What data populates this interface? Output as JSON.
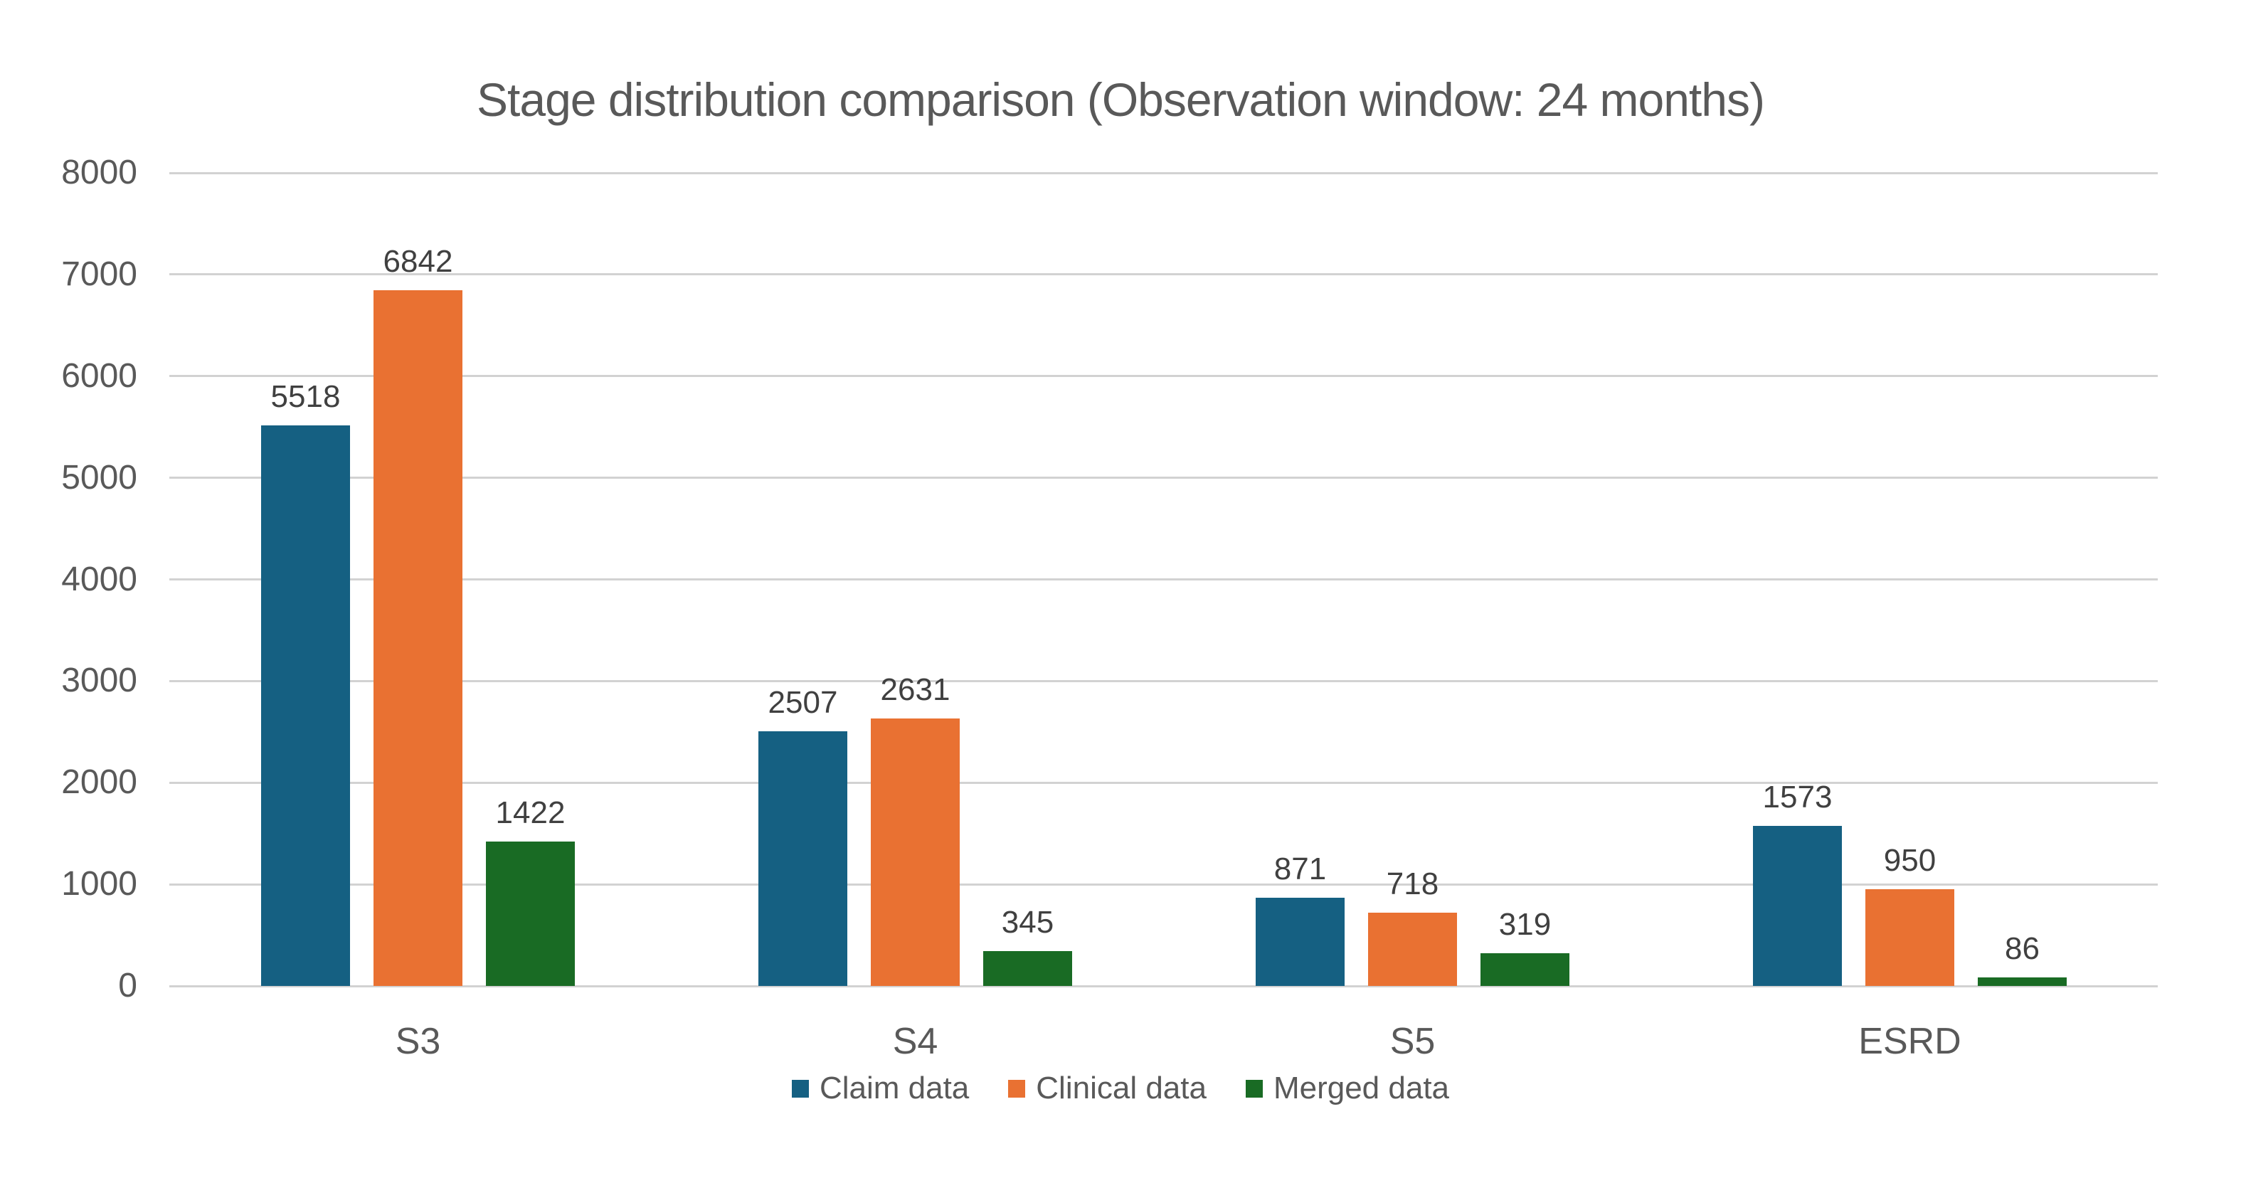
{
  "title": "Stage distribution comparison (Observation window: 24 months)",
  "colors": {
    "claim": "#156082",
    "clinical": "#E97132",
    "merged": "#196B24",
    "gridline": "#D2D2D2",
    "axis_text": "#595959",
    "data_label_text": "#404040",
    "title_text": "#595959",
    "background": "#FFFFFF"
  },
  "chart_data": {
    "type": "bar",
    "title": "Stage distribution comparison (Observation window: 24 months)",
    "categories": [
      "S3",
      "S4",
      "S5",
      "ESRD"
    ],
    "series": [
      {
        "name": "Claim data",
        "color_key": "claim",
        "values": [
          5518,
          2507,
          871,
          1573
        ]
      },
      {
        "name": "Clinical data",
        "color_key": "clinical",
        "values": [
          6842,
          2631,
          718,
          950
        ]
      },
      {
        "name": "Merged data",
        "color_key": "merged",
        "values": [
          1422,
          345,
          319,
          86
        ]
      }
    ],
    "y_axis": {
      "min": 0,
      "max": 8000,
      "step": 1000,
      "tick_labels": [
        "8000",
        "7000",
        "6000",
        "5000",
        "4000",
        "3000",
        "2000",
        "1000",
        "0"
      ]
    },
    "xlabel": "",
    "ylabel": "",
    "grid": true,
    "data_labels": true,
    "legend_position": "bottom"
  }
}
